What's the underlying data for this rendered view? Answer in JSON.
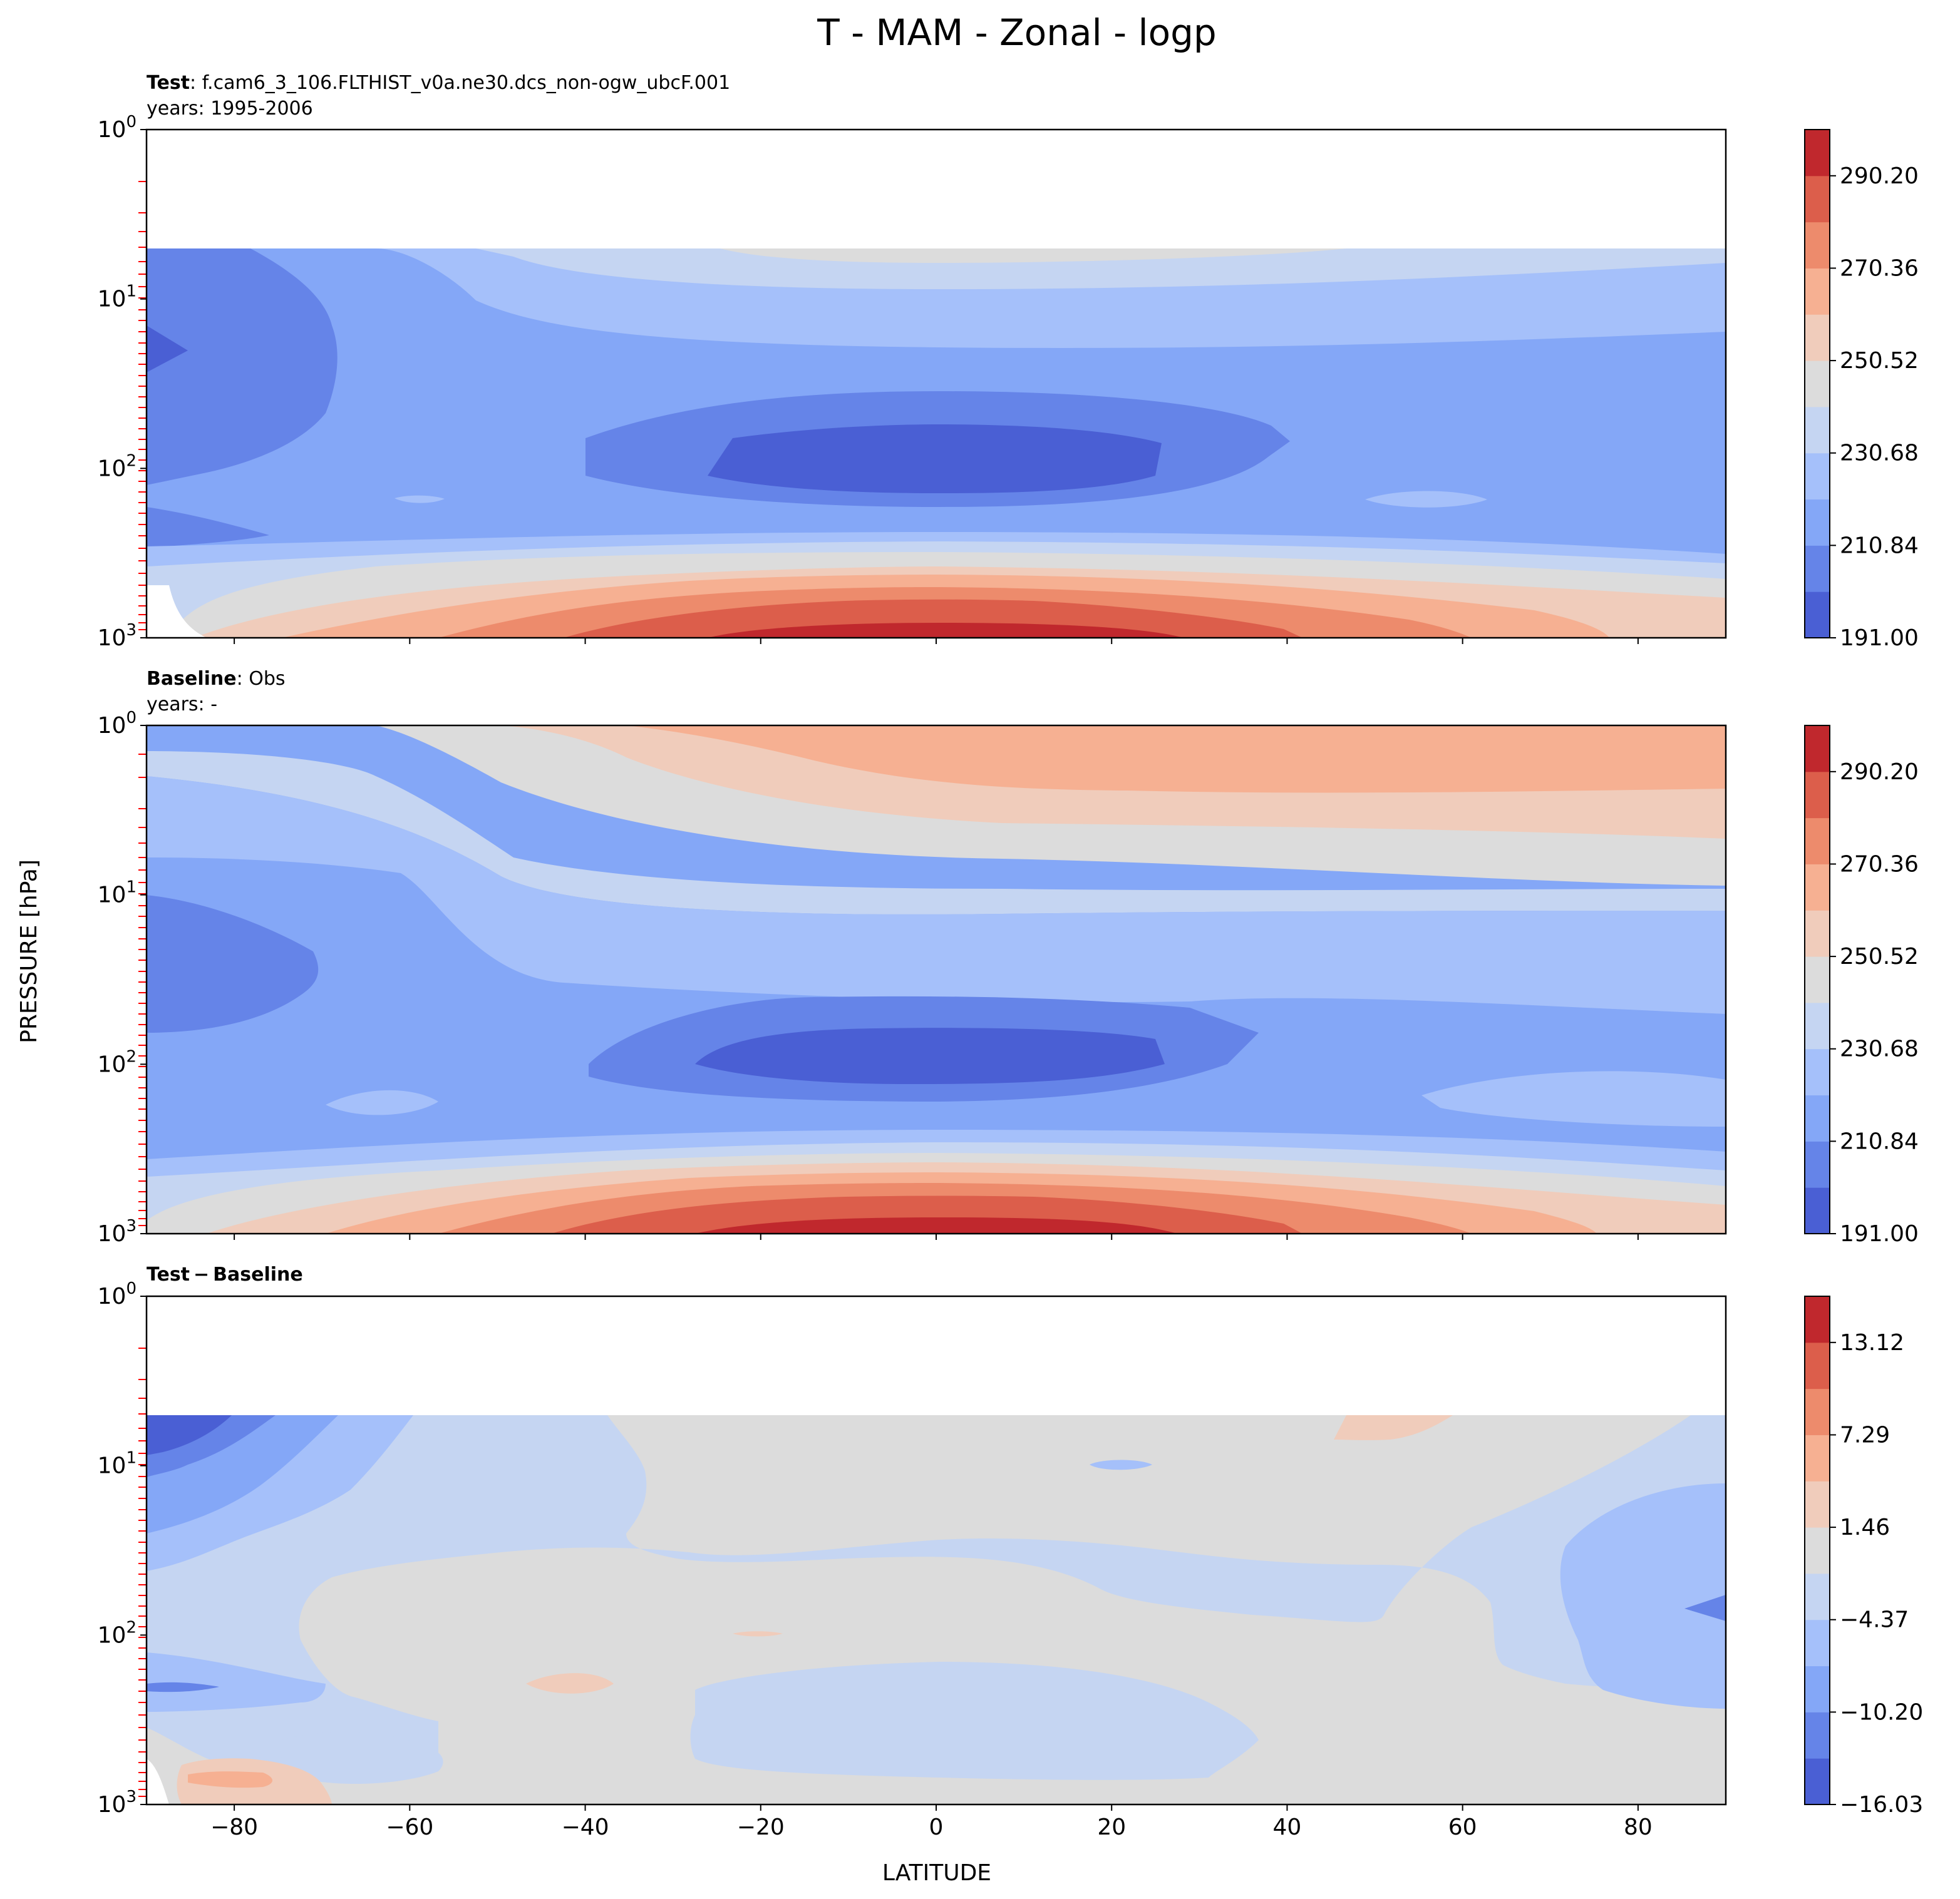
{
  "figure": {
    "title": "T - MAM - Zonal - logp",
    "xlabel": "LATITUDE",
    "ylabel": "PRESSURE [hPa]"
  },
  "colors": {
    "levels": [
      "#4a5fd4",
      "#6584e8",
      "#84a7f7",
      "#a5c0fa",
      "#c5d5f2",
      "#dcdcdc",
      "#f0ccbb",
      "#f6b092",
      "#ed8b6c",
      "#dc5e4b",
      "#c0282d"
    ],
    "frame": "#000000",
    "model_level_tick": "#ff0000"
  },
  "chart_data": [
    {
      "type": "contourf",
      "panel": "test",
      "label_bold": "Test",
      "label_rest": ": f.cam6_3_106.FLTHIST_v0a.ne30.dcs_non-ogw_ubcF.001",
      "years": "years: 1995-2006",
      "xlim": [
        -90,
        90
      ],
      "ylim": [
        1000,
        1
      ],
      "yscale": "log",
      "x_ticks": [
        -80,
        -60,
        -40,
        -20,
        0,
        20,
        40,
        60,
        80
      ],
      "y_ticks": [
        "10^0",
        "10^1",
        "10^2",
        "10^3"
      ],
      "model_top_hPa": 5,
      "colorbar_ticks": [
        "191.00",
        "210.84",
        "230.68",
        "250.52",
        "270.36",
        "290.20"
      ],
      "colorbar_levels": 11,
      "features": [
        {
          "name": "polar-cold-region",
          "level": 1,
          "x": [
            -90,
            -65
          ],
          "p": [
            5,
            130
          ]
        },
        {
          "name": "polar-coldest-spot",
          "level": 0,
          "x": [
            -90,
            -86
          ],
          "p": [
            15,
            25
          ]
        },
        {
          "name": "tropopause-cold-region",
          "level": 1,
          "x": [
            -40,
            40
          ],
          "p": [
            35,
            200
          ]
        },
        {
          "name": "tropopause-coldest-core",
          "level": 0,
          "x": [
            -26,
            26
          ],
          "p": [
            55,
            160
          ]
        },
        {
          "name": "surface-warm-max",
          "level": 10,
          "x": [
            -20,
            30
          ],
          "p": [
            900,
            1000
          ]
        }
      ]
    },
    {
      "type": "contourf",
      "panel": "baseline",
      "label_bold": "Baseline",
      "label_rest": ": Obs",
      "years": "years: -",
      "xlim": [
        -90,
        90
      ],
      "ylim": [
        1000,
        1
      ],
      "yscale": "log",
      "x_ticks": [
        -80,
        -60,
        -40,
        -20,
        0,
        20,
        40,
        60,
        80
      ],
      "y_ticks": [
        "10^0",
        "10^1",
        "10^2",
        "10^3"
      ],
      "colorbar_ticks": [
        "191.00",
        "210.84",
        "230.68",
        "250.52",
        "270.36",
        "290.20"
      ],
      "colorbar_levels": 11,
      "features": [
        {
          "name": "upper-stratosphere-warm",
          "level": 7,
          "x": [
            -10,
            90
          ],
          "p": [
            1,
            2.5
          ]
        },
        {
          "name": "polar-cold-region",
          "level": 1,
          "x": [
            -90,
            -70
          ],
          "p": [
            10,
            60
          ]
        },
        {
          "name": "tropopause-cold-region",
          "level": 1,
          "x": [
            -40,
            38
          ],
          "p": [
            35,
            200
          ]
        },
        {
          "name": "tropopause-coldest-core",
          "level": 0,
          "x": [
            -28,
            26
          ],
          "p": [
            55,
            140
          ]
        },
        {
          "name": "surface-warm-max",
          "level": 10,
          "x": [
            -20,
            30
          ],
          "p": [
            900,
            1000
          ]
        }
      ]
    },
    {
      "type": "contourf",
      "panel": "diff",
      "label_bold": "Test − Baseline",
      "label_rest": "",
      "years": "",
      "xlim": [
        -90,
        90
      ],
      "ylim": [
        1000,
        1
      ],
      "yscale": "log",
      "x_ticks": [
        -80,
        -60,
        -40,
        -20,
        0,
        20,
        40,
        60,
        80
      ],
      "y_ticks": [
        "10^0",
        "10^1",
        "10^2",
        "10^3"
      ],
      "model_top_hPa": 5,
      "colorbar_ticks": [
        "−16.03",
        "−10.20",
        "−4.37",
        "1.46",
        "7.29",
        "13.12"
      ],
      "colorbar_levels": 11,
      "features": [
        {
          "name": "polar-strong-negative",
          "level": 0,
          "x": [
            -90,
            -80
          ],
          "p": [
            5,
            8
          ]
        },
        {
          "name": "arctic-negative",
          "level": 2,
          "x": [
            -90,
            -70
          ],
          "p": [
            5,
            400
          ]
        },
        {
          "name": "tropical-lower-negative",
          "level": 4,
          "x": [
            -27,
            37
          ],
          "p": [
            200,
            800
          ]
        },
        {
          "name": "arctic-positive-upper",
          "level": 6,
          "x": [
            46,
            60
          ],
          "p": [
            5,
            9
          ]
        },
        {
          "name": "antarctic-surface-positive",
          "level": 6,
          "x": [
            -86,
            -70
          ],
          "p": [
            700,
            1000
          ]
        }
      ]
    }
  ]
}
